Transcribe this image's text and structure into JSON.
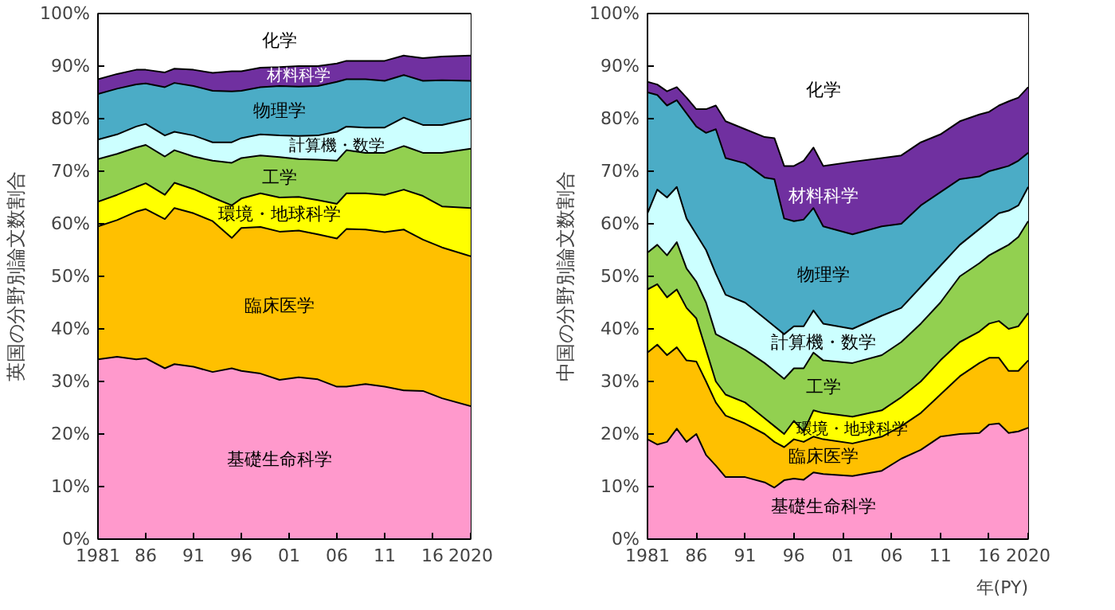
{
  "chart_data": [
    {
      "type": "area",
      "stacked": true,
      "ylabel": "英国の分野別論文数割合",
      "legend": false,
      "x": [
        1981,
        1983,
        1985,
        1986,
        1988,
        1989,
        1991,
        1993,
        1995,
        1996,
        1998,
        2000,
        2002,
        2004,
        2006,
        2007,
        2009,
        2011,
        2013,
        2015,
        2017,
        2020
      ],
      "xlim": [
        1981,
        2020
      ],
      "ylim": [
        0,
        100
      ],
      "xticks": [
        1981,
        {
          "value": 1986,
          "label": "86"
        },
        {
          "value": 1991,
          "label": "91"
        },
        {
          "value": 1996,
          "label": "96"
        },
        {
          "value": 2001,
          "label": "01"
        },
        {
          "value": 2006,
          "label": "06"
        },
        {
          "value": 2011,
          "label": "11"
        },
        {
          "value": 2016,
          "label": "16"
        },
        2020
      ],
      "yticks": [
        {
          "value": 0,
          "label": "0%"
        },
        {
          "value": 10,
          "label": "10%"
        },
        {
          "value": 20,
          "label": "20%"
        },
        {
          "value": 30,
          "label": "30%"
        },
        {
          "value": 40,
          "label": "40%"
        },
        {
          "value": 50,
          "label": "50%"
        },
        {
          "value": 60,
          "label": "60%"
        },
        {
          "value": 70,
          "label": "70%"
        },
        {
          "value": 80,
          "label": "80%"
        },
        {
          "value": 90,
          "label": "90%"
        },
        {
          "value": 100,
          "label": "100%"
        }
      ],
      "series": [
        {
          "name": "基礎生命科学",
          "color": "#ff99cc",
          "values": [
            34.2,
            34.7,
            34.2,
            34.4,
            32.5,
            33.3,
            32.8,
            31.8,
            32.5,
            32.0,
            31.5,
            30.3,
            30.8,
            30.4,
            29.0,
            29.0,
            29.5,
            29.0,
            28.3,
            28.2,
            26.8,
            25.3
          ]
        },
        {
          "name": "臨床医学",
          "color": "#ffc000",
          "values": [
            25.3,
            26.0,
            28.1,
            28.4,
            28.4,
            29.7,
            29.2,
            28.7,
            24.8,
            27.2,
            27.9,
            28.2,
            27.9,
            27.6,
            28.2,
            30.0,
            29.4,
            29.4,
            30.6,
            28.8,
            28.7,
            28.5
          ]
        },
        {
          "name": "環境・地球科学",
          "color": "#ffff00",
          "values": [
            4.7,
            4.8,
            4.7,
            4.9,
            4.6,
            4.8,
            4.6,
            4.5,
            6.2,
            5.6,
            6.4,
            6.5,
            6.4,
            6.5,
            6.6,
            6.8,
            6.9,
            7.1,
            7.6,
            8.3,
            7.8,
            9.2
          ]
        },
        {
          "name": "工学",
          "color": "#92d050",
          "values": [
            8.1,
            7.8,
            7.5,
            7.3,
            7.3,
            6.2,
            6.2,
            7.0,
            8.1,
            7.7,
            7.2,
            7.7,
            7.2,
            7.7,
            8.2,
            8.2,
            7.7,
            8.0,
            8.3,
            8.2,
            10.2,
            11.3
          ]
        },
        {
          "name": "計算機・数学",
          "color": "#ccffff",
          "values": [
            3.7,
            3.7,
            4.0,
            4.0,
            4.0,
            3.5,
            4.0,
            3.5,
            3.9,
            3.8,
            4.0,
            4.1,
            4.4,
            4.6,
            5.5,
            4.5,
            4.8,
            4.8,
            5.4,
            5.3,
            5.3,
            5.7
          ]
        },
        {
          "name": "物理学",
          "color": "#4bacc6",
          "values": [
            8.7,
            8.7,
            8.0,
            7.7,
            9.2,
            9.3,
            9.4,
            9.8,
            9.7,
            9.0,
            9.0,
            9.4,
            9.4,
            9.4,
            9.5,
            9.0,
            9.2,
            8.9,
            8.1,
            8.4,
            8.5,
            7.2
          ]
        },
        {
          "name": "材料科学",
          "color": "#7030a0",
          "values": [
            2.8,
            2.8,
            2.8,
            2.6,
            2.8,
            2.7,
            3.1,
            3.4,
            3.8,
            3.7,
            3.7,
            3.6,
            3.9,
            3.8,
            3.5,
            3.5,
            3.5,
            3.8,
            3.7,
            4.3,
            4.5,
            4.8
          ]
        },
        {
          "name": "化学",
          "color": "#ffffff",
          "values": [
            12.5,
            11.5,
            10.7,
            10.7,
            11.2,
            10.5,
            10.7,
            11.3,
            11.0,
            11.0,
            10.3,
            10.2,
            10.0,
            10.0,
            9.5,
            9.0,
            9.0,
            9.0,
            8.0,
            8.5,
            8.2,
            8.0
          ]
        }
      ]
    },
    {
      "type": "area",
      "stacked": true,
      "ylabel": "中国の分野別論文数割合",
      "xlabel": "年(PY)",
      "legend": false,
      "x": [
        1981,
        1982,
        1983,
        1984,
        1985,
        1986,
        1987,
        1988,
        1989,
        1991,
        1993,
        1994,
        1995,
        1996,
        1997,
        1998,
        1999,
        2002,
        2005,
        2007,
        2009,
        2011,
        2013,
        2015,
        2016,
        2017,
        2018,
        2019,
        2020
      ],
      "xlim": [
        1981,
        2020
      ],
      "ylim": [
        0,
        100
      ],
      "xticks": [
        1981,
        {
          "value": 1986,
          "label": "86"
        },
        {
          "value": 1991,
          "label": "91"
        },
        {
          "value": 1996,
          "label": "96"
        },
        {
          "value": 2001,
          "label": "01"
        },
        {
          "value": 2006,
          "label": "06"
        },
        {
          "value": 2011,
          "label": "11"
        },
        {
          "value": 2016,
          "label": "16"
        },
        2020
      ],
      "yticks": [
        {
          "value": 0,
          "label": "0%"
        },
        {
          "value": 10,
          "label": "10%"
        },
        {
          "value": 20,
          "label": "20%"
        },
        {
          "value": 30,
          "label": "30%"
        },
        {
          "value": 40,
          "label": "40%"
        },
        {
          "value": 50,
          "label": "50%"
        },
        {
          "value": 60,
          "label": "60%"
        },
        {
          "value": 70,
          "label": "70%"
        },
        {
          "value": 80,
          "label": "80%"
        },
        {
          "value": 90,
          "label": "90%"
        },
        {
          "value": 100,
          "label": "100%"
        }
      ],
      "series": [
        {
          "name": "基礎生命科学",
          "color": "#ff99cc",
          "values": [
            19.0,
            18.0,
            18.5,
            21.0,
            18.5,
            20.0,
            16.0,
            14.0,
            11.8,
            11.8,
            10.8,
            9.8,
            11.2,
            11.5,
            11.3,
            12.7,
            12.4,
            12.0,
            13.0,
            15.3,
            17.0,
            19.5,
            20.0,
            20.2,
            21.8,
            22.0,
            20.2,
            20.5,
            21.2
          ]
        },
        {
          "name": "臨床医学",
          "color": "#ffc000",
          "values": [
            16.5,
            19.0,
            16.5,
            15.5,
            15.5,
            13.8,
            14.0,
            12.0,
            11.7,
            10.2,
            9.2,
            8.7,
            6.3,
            7.5,
            7.2,
            6.8,
            6.6,
            6.2,
            6.5,
            6.2,
            7.0,
            8.0,
            11.0,
            13.3,
            12.7,
            12.5,
            11.8,
            11.5,
            12.8
          ]
        },
        {
          "name": "環境・地球科学",
          "color": "#ffff00",
          "values": [
            12.0,
            11.5,
            11.0,
            11.0,
            10.0,
            8.2,
            6.0,
            4.0,
            4.0,
            4.0,
            3.0,
            3.0,
            2.5,
            3.5,
            2.0,
            5.0,
            5.0,
            5.1,
            5.0,
            5.5,
            6.0,
            6.5,
            6.5,
            6.0,
            6.5,
            7.0,
            8.0,
            8.5,
            9.0
          ]
        },
        {
          "name": "工学",
          "color": "#92d050",
          "values": [
            7.0,
            7.5,
            8.0,
            9.0,
            7.5,
            7.0,
            9.0,
            9.0,
            10.5,
            10.0,
            10.5,
            10.5,
            10.5,
            10.0,
            12.0,
            11.0,
            10.0,
            10.2,
            10.5,
            10.5,
            11.0,
            11.0,
            12.5,
            13.0,
            13.0,
            13.5,
            16.0,
            17.0,
            17.5
          ]
        },
        {
          "name": "計算機・数学",
          "color": "#ccffff",
          "values": [
            7.5,
            10.5,
            11.0,
            10.5,
            9.5,
            9.0,
            10.0,
            11.5,
            8.5,
            9.0,
            8.5,
            8.5,
            8.5,
            8.0,
            8.0,
            8.0,
            7.0,
            6.5,
            7.5,
            6.5,
            7.0,
            7.0,
            6.0,
            6.5,
            6.5,
            7.0,
            6.5,
            6.0,
            6.5
          ]
        },
        {
          "name": "物理学",
          "color": "#4bacc6",
          "values": [
            23.0,
            18.0,
            17.5,
            16.5,
            20.0,
            20.5,
            22.3,
            27.5,
            26.0,
            26.5,
            26.8,
            28.0,
            22.0,
            20.0,
            20.3,
            19.5,
            18.5,
            18.0,
            17.0,
            16.0,
            15.5,
            14.0,
            12.5,
            10.0,
            9.5,
            8.5,
            8.5,
            8.5,
            6.5
          ]
        },
        {
          "name": "材料科学",
          "color": "#7030a0",
          "values": [
            2.0,
            2.0,
            2.7,
            2.5,
            3.0,
            3.3,
            4.5,
            4.5,
            7.0,
            6.5,
            7.7,
            7.8,
            10.0,
            10.5,
            11.2,
            11.5,
            11.5,
            13.8,
            13.0,
            13.0,
            12.0,
            11.0,
            11.0,
            11.8,
            11.3,
            12.0,
            12.3,
            12.0,
            12.5
          ]
        },
        {
          "name": "化学",
          "color": "#ffffff",
          "values": [
            13.0,
            13.5,
            14.8,
            14.0,
            16.0,
            18.2,
            18.2,
            17.5,
            20.5,
            22.0,
            23.5,
            23.7,
            29.0,
            29.0,
            28.0,
            25.5,
            29.0,
            28.2,
            27.5,
            27.0,
            24.5,
            23.0,
            20.5,
            19.2,
            18.7,
            17.5,
            16.7,
            16.0,
            14.0
          ]
        }
      ]
    }
  ]
}
